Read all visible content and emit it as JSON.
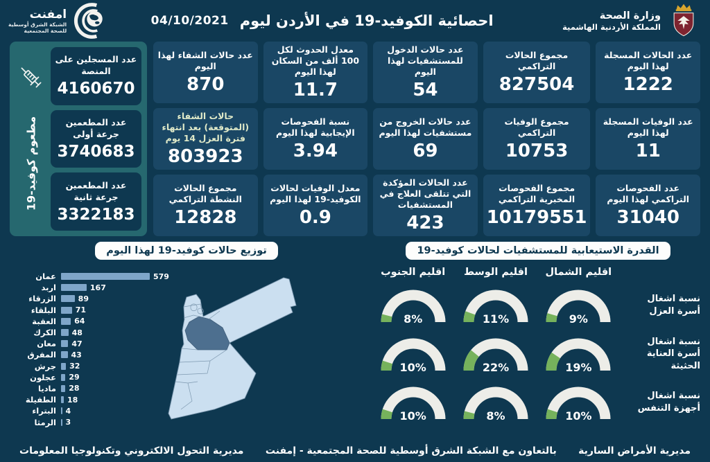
{
  "header": {
    "title": "احصائية الكوفيد-19 في الأردن ليوم",
    "date": "04/10/2021",
    "moh": {
      "line1": "وزارة الصحة",
      "line2": "المملكة الأردنية الهاشمية"
    },
    "emphnet": {
      "name": "امفنت",
      "sub1": "الشبكة الشرق أوسطية",
      "sub2": "للصحة المجتمعية"
    }
  },
  "stats": {
    "columns": [
      {
        "cards": [
          {
            "label": "عدد الحالات المسجلة لهذا اليوم",
            "value": "1222"
          },
          {
            "label": "عدد الوفيات المسجلة لهذا اليوم",
            "value": "11"
          },
          {
            "label": "عدد الفحوصات التراكمي لهذا اليوم",
            "value": "31040"
          }
        ]
      },
      {
        "cards": [
          {
            "label": "مجموع الحالات التراكمي",
            "value": "827504"
          },
          {
            "label": "مجموع الوفيات التراكمي",
            "value": "10753"
          },
          {
            "label": "مجموع الفحوصات المخبرية التراكمي",
            "value": "10179551"
          }
        ]
      },
      {
        "cards": [
          {
            "label": "عدد حالات الدخول للمستشفيات لهذا اليوم",
            "value": "54"
          },
          {
            "label": "عدد حالات الخروج من مستشفيات لهذا اليوم",
            "value": "69"
          },
          {
            "label": "عدد الحالات المؤكدة التي تتلقى العلاج في المستشفيات",
            "value": "423"
          }
        ]
      },
      {
        "cards": [
          {
            "label": "معدل الحدوث لكل 100 ألف من السكان لهذا اليوم",
            "value": "11.7"
          },
          {
            "label": "نسبة الفحوصات الإيجابية لهذا اليوم",
            "value": "3.94"
          },
          {
            "label": "معدل الوفيات لحالات الكوفيد-19 لهذا اليوم",
            "value": "0.9"
          }
        ]
      },
      {
        "cards": [
          {
            "label": "عدد حالات الشفاء لهذا اليوم",
            "value": "870"
          },
          {
            "label": "حالات الشفاء (المتوقعة) بعد انتهاء فترة العزل 14 يوم",
            "value": "803923"
          },
          {
            "label": "مجموع الحالات النشطة التراكمي",
            "value": "12828"
          }
        ]
      }
    ]
  },
  "vaccine_panel": {
    "vertical_label": "مطعوم كوفيد-19",
    "cards": [
      {
        "label": "عدد المسجلين على المنصة",
        "value": "4160670"
      },
      {
        "label": "عدد المطعمين جرعة أولى",
        "value": "3740683"
      },
      {
        "label": "عدد المطعمين جرعة ثانية",
        "value": "3322183"
      }
    ]
  },
  "distribution": {
    "banner": "توزيع حالات كوفيد-19 لهذا اليوم"
  },
  "hospital_capacity": {
    "banner": "القدرة الاستيعابية للمستشفيات لحالات كوفيد-19"
  },
  "chart_data": [
    {
      "type": "bar",
      "title": "توزيع حالات كوفيد-19 لهذا اليوم",
      "orientation": "horizontal",
      "categories": [
        "عمان",
        "اربد",
        "الزرقاء",
        "البلقاء",
        "العقبة",
        "الكرك",
        "معان",
        "المفرق",
        "جرش",
        "عجلون",
        "ماديا",
        "الطفيلة",
        "البتراء",
        "الرمثا"
      ],
      "values": [
        579,
        167,
        89,
        71,
        64,
        48,
        47,
        43,
        32,
        29,
        28,
        18,
        4,
        3
      ],
      "xlim": [
        0,
        600
      ],
      "bar_color": "#7FA6C9",
      "map_highlight_region": "عمان"
    },
    {
      "type": "gauge",
      "title": "القدرة الاستيعابية للمستشفيات لحالات كوفيد-19",
      "regions": [
        "اقليم الشمال",
        "اقليم الوسط",
        "اقليم الجنوب"
      ],
      "rows": [
        {
          "label": "نسبة اشغال أسرة العزل",
          "values": [
            9,
            11,
            8
          ]
        },
        {
          "label": "نسبة اشغال أسرة العناية الحثيثة",
          "values": [
            19,
            22,
            10
          ]
        },
        {
          "label": "نسبة اشغال أجهزة التنفس",
          "values": [
            10,
            8,
            10
          ]
        }
      ],
      "unit": "%",
      "fill_color": "#76B25C",
      "track_color": "#EDEDE8"
    }
  ],
  "footer": {
    "right": "مديرية الأمراض السارية",
    "center": "بالتعاون مع الشبكة الشرق أوسطية للصحة المجتمعية - إمفنت",
    "left": "مديرية التحول الالكتروني وتكنولوجيا المعلومات"
  },
  "colors": {
    "background": "#0E3850",
    "card": "#1A4765",
    "vaccine_panel": "#26686F",
    "bar": "#7FA6C9",
    "gauge_green": "#76B25C",
    "gauge_track": "#EDEDE8",
    "map_light": "#CBDFF0",
    "map_highlight": "#4D6F8F",
    "banner_bg": "#FDFDFC"
  }
}
